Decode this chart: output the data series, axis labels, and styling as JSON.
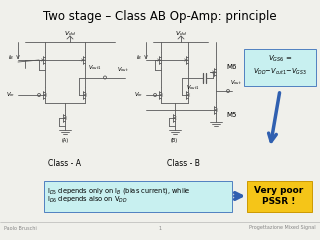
{
  "title": "Two stage – Class AB Op-Amp: principle",
  "title_fontsize": 8.5,
  "bg_color": "#f0f0eb",
  "footer_left": "Paolo Bruschi",
  "footer_center": "1",
  "footer_right": "Progettazione Mixed Signal",
  "class_a_label": "Class - A",
  "class_b_label": "Class - B",
  "box1_line1": "I$_{D5}$ depends only on I$_{B}$ (bias current), while",
  "box1_line2": "I$_{D6}$ depends also on V$_{DD}$",
  "box1_color": "#c8f0f0",
  "box2_text": "Very poor\nPSSR !",
  "box2_color": "#f5c518",
  "vgs6_line1": "V$_{GS6}$ =",
  "vgs6_line2": "V$_{DD}$−V$_{out1}$−V$_{GS3}$",
  "vgs6_box_color": "#c8f0f0",
  "arrow_color": "#3060b0",
  "circuit_color": "#606060",
  "line_width": 0.6,
  "cc": "#585858"
}
